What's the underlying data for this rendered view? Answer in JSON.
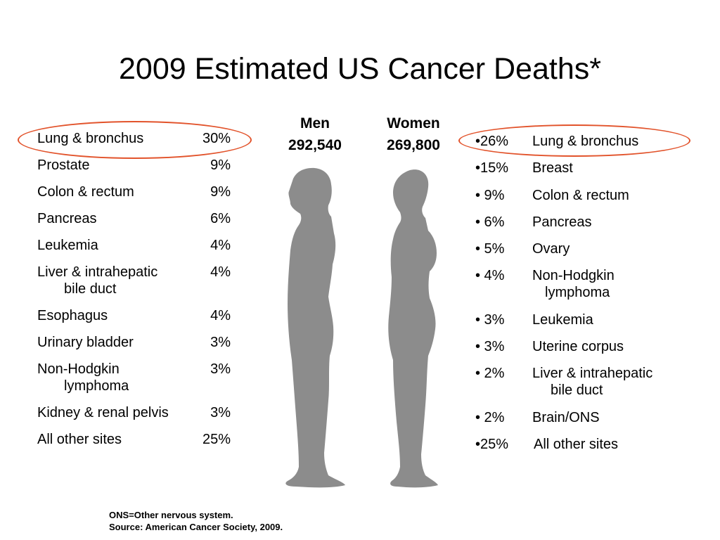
{
  "title": "2009 Estimated US Cancer Deaths*",
  "men": {
    "label": "Men",
    "total": "292,540",
    "items": [
      {
        "site": "Lung & bronchus",
        "pct": "30%"
      },
      {
        "site": "Prostate",
        "pct": "9%"
      },
      {
        "site": "Colon & rectum",
        "pct": "9%"
      },
      {
        "site": "Pancreas",
        "pct": "6%"
      },
      {
        "site": "Leukemia",
        "pct": "4%"
      },
      {
        "site": "Liver & intrahepatic",
        "site_cont": "bile duct",
        "pct": "4%"
      },
      {
        "site": "Esophagus",
        "pct": "4%"
      },
      {
        "site": "Urinary bladder",
        "pct": "3%"
      },
      {
        "site": "Non-Hodgkin",
        "site_cont": "lymphoma",
        "pct": "3%"
      },
      {
        "site": "Kidney & renal pelvis",
        "pct": "3%"
      },
      {
        "site": "All other sites",
        "pct": "25%"
      }
    ]
  },
  "women": {
    "label": "Women",
    "total": "269,800",
    "items": [
      {
        "pct": "•26%",
        "site": "Lung & bronchus"
      },
      {
        "pct": "•15%",
        "site": "Breast"
      },
      {
        "pct": "• 9%",
        "site": "Colon & rectum"
      },
      {
        "pct": "•  6%",
        "site": "Pancreas"
      },
      {
        "pct": "•  5%",
        "site": "Ovary"
      },
      {
        "pct": "•  4%",
        "site": "Non-Hodgkin",
        "site_cont": "lymphoma"
      },
      {
        "pct": "•  3%",
        "site": "Leukemia"
      },
      {
        "pct": "• 3%",
        "site": "Uterine corpus"
      },
      {
        "pct": "•  2%",
        "site": " Liver & intrahepatic",
        "site_cont": "bile duct"
      },
      {
        "pct": "•  2%",
        "site": "Brain/ONS"
      },
      {
        "pct": "•25%",
        "site": "All other sites"
      }
    ]
  },
  "footnote": {
    "line1": "ONS=Other nervous system.",
    "line2": "Source: American Cancer Society, 2009."
  },
  "colors": {
    "highlight_ring": "#e2532b",
    "silhouette": "#8c8c8c"
  },
  "icons": {
    "men": "male-silhouette-icon",
    "women": "female-silhouette-icon"
  }
}
